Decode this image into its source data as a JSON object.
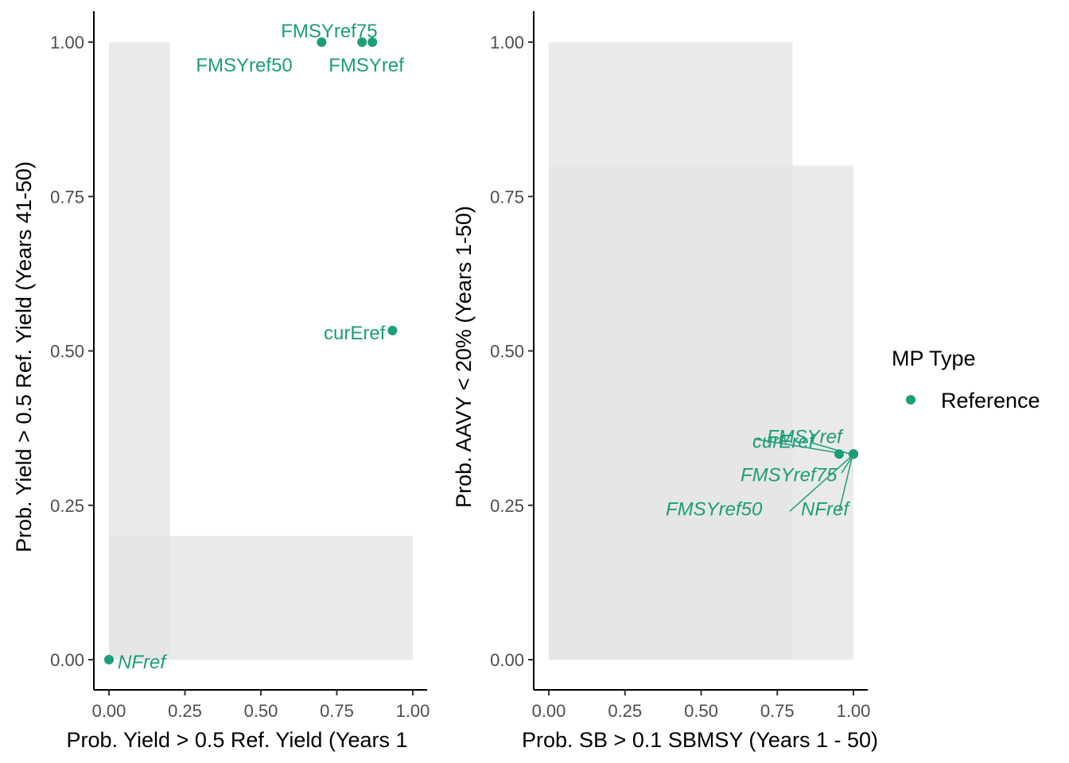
{
  "colors": {
    "reference": "#1b9e77",
    "shade": "#e5e5e5",
    "axis": "#000000",
    "tick_text": "#4d4d4d"
  },
  "legend": {
    "title": "MP Type",
    "items": [
      {
        "label": "Reference",
        "color": "#1b9e77"
      }
    ]
  },
  "chart_data": [
    {
      "type": "scatter",
      "xlabel": "Prob. Yield > 0.5 Ref. Yield (Years 1",
      "ylabel": "Prob. Yield > 0.5 Ref. Yield (Years 41-50)",
      "xlim": [
        -0.05,
        1.05
      ],
      "ylim": [
        -0.1,
        1.1
      ],
      "xticks": [
        "0.00",
        "0.25",
        "0.50",
        "0.75",
        "1.00"
      ],
      "yticks": [
        "0.00",
        "0.25",
        "0.50",
        "0.75",
        "1.00"
      ],
      "grid": false,
      "shaded_regions": [
        {
          "x": [
            0,
            0.2
          ],
          "y": [
            0,
            1
          ]
        },
        {
          "x": [
            0,
            1
          ],
          "y": [
            0,
            0.2
          ]
        }
      ],
      "points": [
        {
          "label": "FMSYref50",
          "x": 0.7,
          "y": 1.0,
          "italic": false
        },
        {
          "label": "FMSYref75",
          "x": 0.833,
          "y": 1.0,
          "italic": false
        },
        {
          "label": "FMSYref",
          "x": 0.867,
          "y": 1.0,
          "italic": false
        },
        {
          "label": "curEref",
          "x": 0.933,
          "y": 0.533,
          "italic": false
        },
        {
          "label": "NFref",
          "x": 0.0,
          "y": 0.0,
          "italic": true
        }
      ]
    },
    {
      "type": "scatter",
      "xlabel": "Prob. SB > 0.1 SBMSY (Years 1 - 50)",
      "ylabel": "Prob. AAVY < 20% (Years 1-50)",
      "xlim": [
        -0.05,
        1.05
      ],
      "ylim": [
        -0.1,
        1.1
      ],
      "xticks": [
        "0.00",
        "0.25",
        "0.50",
        "0.75",
        "1.00"
      ],
      "yticks": [
        "0.00",
        "0.25",
        "0.50",
        "0.75",
        "1.00"
      ],
      "grid": false,
      "shaded_regions": [
        {
          "x": [
            0,
            0.8
          ],
          "y": [
            0,
            1
          ]
        },
        {
          "x": [
            0,
            1
          ],
          "y": [
            0,
            0.8
          ]
        }
      ],
      "points": [
        {
          "label": "curEref",
          "x": 0.953,
          "y": 0.333,
          "italic": true
        },
        {
          "label": "FMSYref",
          "x": 1.0,
          "y": 0.333,
          "italic": true
        },
        {
          "label": "FMSYref75",
          "x": 1.0,
          "y": 0.333,
          "italic": true
        },
        {
          "label": "FMSYref50",
          "x": 1.0,
          "y": 0.333,
          "italic": true
        },
        {
          "label": "NFref",
          "x": 1.0,
          "y": 0.333,
          "italic": true
        }
      ]
    }
  ]
}
